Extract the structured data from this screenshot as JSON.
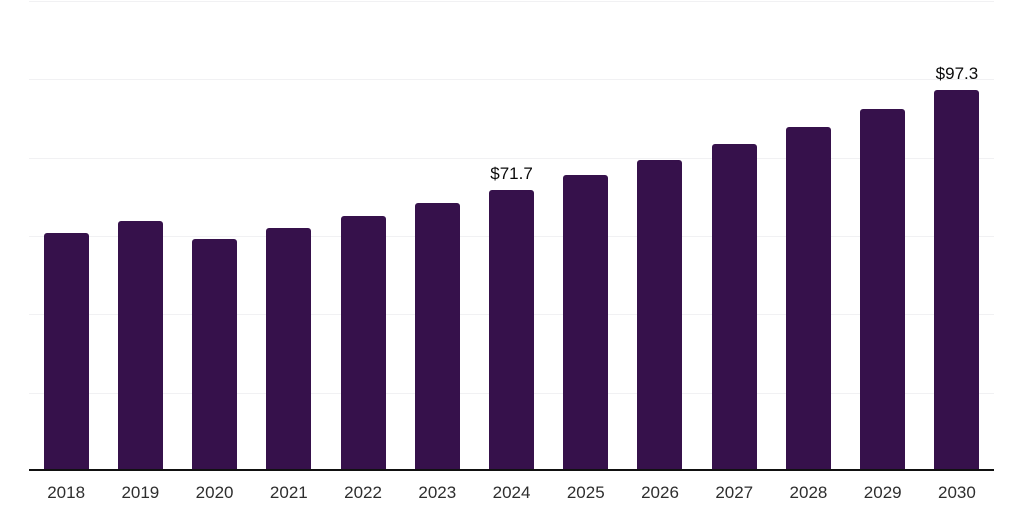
{
  "chart_data": {
    "type": "bar",
    "title": "",
    "xlabel": "",
    "ylabel": "",
    "categories": [
      "2018",
      "2019",
      "2020",
      "2021",
      "2022",
      "2023",
      "2024",
      "2025",
      "2026",
      "2027",
      "2028",
      "2029",
      "2030"
    ],
    "values": [
      60.8,
      63.9,
      59.2,
      62.1,
      65.2,
      68.5,
      71.7,
      75.5,
      79.3,
      83.5,
      87.8,
      92.4,
      97.3
    ],
    "value_labels": {
      "2024": "$71.7",
      "2030": "$97.3"
    },
    "ylim": [
      0,
      120
    ],
    "gridline_interval": 20,
    "grid": "horizontal-only",
    "legend": "none",
    "colors": {
      "bar": "#36114b",
      "value_label": "#0a0a0a",
      "axis_line": "#111111",
      "tick_label": "#2e2e2e",
      "gridline": "#f1f1f3",
      "background": "#ffffff"
    }
  }
}
